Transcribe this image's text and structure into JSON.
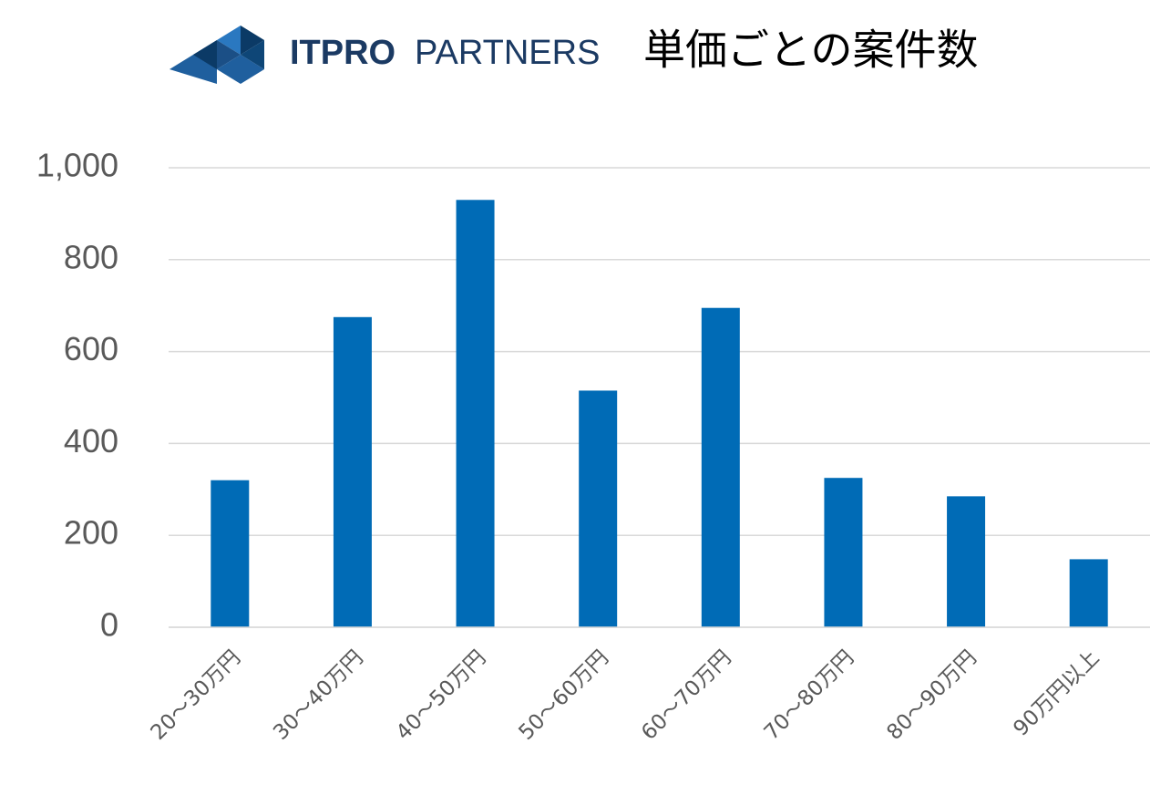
{
  "header": {
    "brand_bold": "ITPRO",
    "brand_light": "PARTNERS"
  },
  "chart_data": {
    "type": "bar",
    "title": "単価ごとの案件数",
    "categories": [
      "20～30万円",
      "30～40万円",
      "40～50万円",
      "50～60万円",
      "60～70万円",
      "70～80万円",
      "80～90万円",
      "90万円以上"
    ],
    "values": [
      320,
      675,
      930,
      515,
      695,
      325,
      285,
      148
    ],
    "color": "#006bb6",
    "ylim": [
      0,
      1000
    ],
    "yticks": [
      0,
      200,
      400,
      600,
      800,
      {
        "value": 1000,
        "label": "1,000"
      }
    ],
    "grid": true
  }
}
